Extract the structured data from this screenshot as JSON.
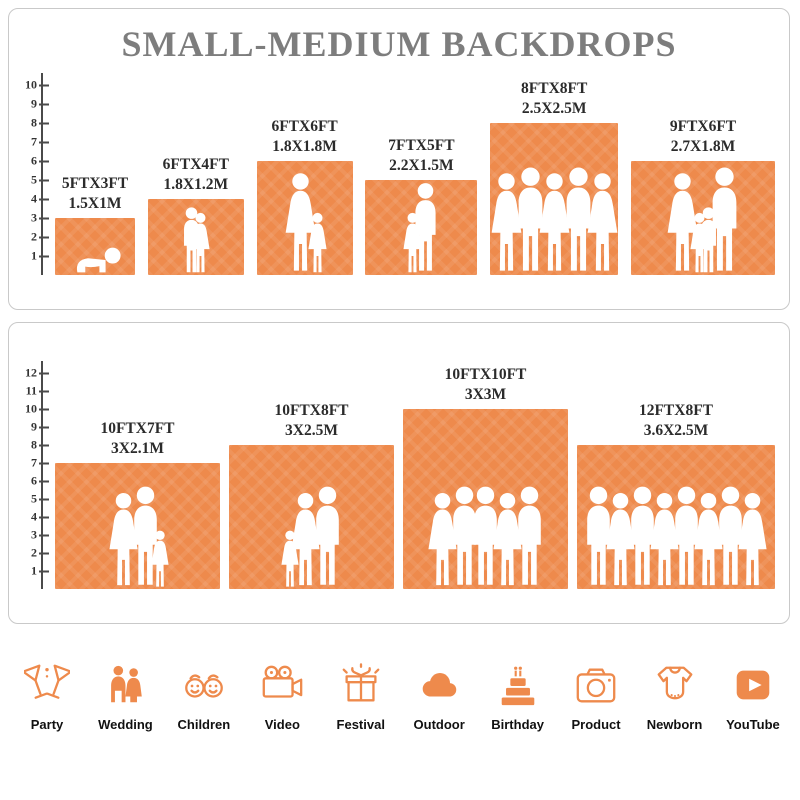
{
  "title": "SMALL-MEDIUM BACKDROPS",
  "accent_color": "#EE8A4C",
  "chart_data": [
    {
      "type": "bar",
      "title": "SMALL-MEDIUM BACKDROPS",
      "categories": [
        "5FTX3FT",
        "6FTX4FT",
        "6FTX6FT",
        "7FTX5FT",
        "8FTX8FT",
        "9FTX6FT"
      ],
      "categories_metric": [
        "1.5X1M",
        "1.8X1.2M",
        "1.8X1.8M",
        "2.2X1.5M",
        "2.5X2.5M",
        "2.7X1.8M"
      ],
      "values": [
        3,
        4,
        6,
        5,
        8,
        6
      ],
      "widths_ft": [
        5,
        6,
        6,
        7,
        8,
        9
      ],
      "figures": [
        [
          "baby"
        ],
        [
          "child",
          "girl"
        ],
        [
          "woman",
          "girl"
        ],
        [
          "girl",
          "man"
        ],
        [
          "woman",
          "man",
          "woman",
          "man",
          "woman"
        ],
        [
          "woman",
          "girl",
          "child",
          "man"
        ]
      ],
      "xlabel": "",
      "ylabel": "",
      "ylim": [
        0,
        10
      ],
      "yticks": [
        1,
        2,
        3,
        4,
        5,
        6,
        7,
        8,
        9,
        10
      ],
      "bar_color": "#EE8A4C",
      "grid": false,
      "legend": false
    },
    {
      "type": "bar",
      "title": "",
      "categories": [
        "10FTX7FT",
        "10FTX8FT",
        "10FTX10FT",
        "12FTX8FT"
      ],
      "categories_metric": [
        "3X2.1M",
        "3X2.5M",
        "3X3M",
        "3.6X2.5M"
      ],
      "values": [
        7,
        8,
        10,
        8
      ],
      "widths_ft": [
        10,
        10,
        10,
        12
      ],
      "figures": [
        [
          "woman",
          "man",
          "girl"
        ],
        [
          "girl",
          "woman",
          "man"
        ],
        [
          "woman",
          "man",
          "man",
          "woman",
          "man"
        ],
        [
          "man",
          "woman",
          "man",
          "woman",
          "man",
          "woman",
          "man",
          "woman"
        ]
      ],
      "xlabel": "",
      "ylabel": "",
      "ylim": [
        0,
        12
      ],
      "yticks": [
        1,
        2,
        3,
        4,
        5,
        6,
        7,
        8,
        9,
        10,
        11,
        12
      ],
      "bar_color": "#EE8A4C",
      "grid": false,
      "legend": false
    }
  ],
  "icon_row": [
    {
      "icon": "party-icon",
      "label": "Party"
    },
    {
      "icon": "wedding-icon",
      "label": "Wedding"
    },
    {
      "icon": "children-icon",
      "label": "Children"
    },
    {
      "icon": "video-icon",
      "label": "Video"
    },
    {
      "icon": "festival-icon",
      "label": "Festival"
    },
    {
      "icon": "outdoor-icon",
      "label": "Outdoor"
    },
    {
      "icon": "birthday-icon",
      "label": "Birthday"
    },
    {
      "icon": "product-icon",
      "label": "Product"
    },
    {
      "icon": "newborn-icon",
      "label": "Newborn"
    },
    {
      "icon": "youtube-icon",
      "label": "YouTube"
    }
  ]
}
